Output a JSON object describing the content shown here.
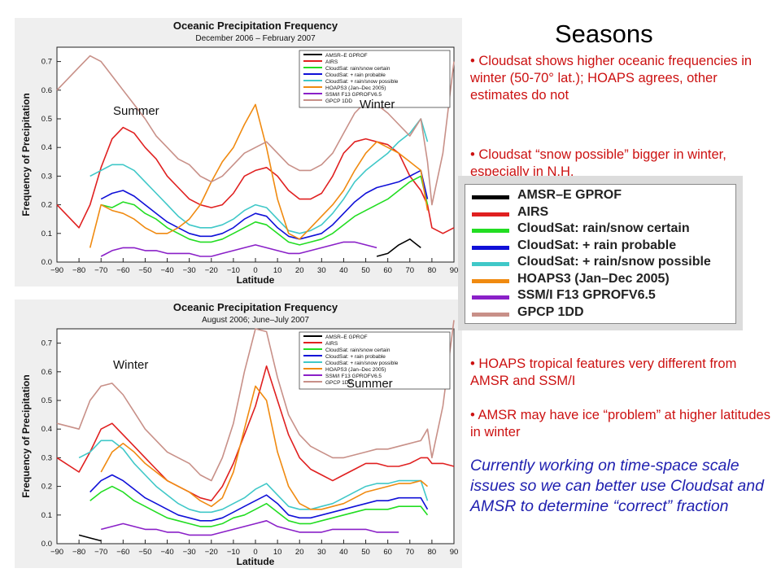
{
  "slide": {
    "title": "Seasons",
    "bullets": [
      "• Cloudsat shows higher oceanic frequencies in winter (50-70° lat.); HOAPS agrees, other estimates do not",
      "• Cloudsat “snow possible” bigger in winter, especially in N.H.",
      "• HOAPS tropical features very different from AMSR and SSM/I",
      "• AMSR may have ice “problem” at higher latitudes in winter"
    ],
    "closing_note": "Currently working on time-space scale issues so we can better use Cloudsat and AMSR to determine “correct” fraction"
  },
  "legend_enlarged": [
    {
      "label": "AMSR–E GPROF",
      "color": "#000000"
    },
    {
      "label": "AIRS",
      "color": "#e02020"
    },
    {
      "label": "CloudSat: rain/snow certain",
      "color": "#22dd22"
    },
    {
      "label": "CloudSat: + rain probable",
      "color": "#1010d8"
    },
    {
      "label": "CloudSat: + rain/snow possible",
      "color": "#40c8c8"
    },
    {
      "label": "HOAPS3 (Jan–Dec 2005)",
      "color": "#f08a10"
    },
    {
      "label": "SSM/I F13 GPROFV6.5",
      "color": "#8a20c8"
    },
    {
      "label": "GPCP 1DD",
      "color": "#c89088"
    }
  ],
  "chart_data": [
    {
      "type": "line",
      "title": "Oceanic Precipitation Frequency",
      "subtitle": "December 2006 – February 2007",
      "xlabel": "Latitude",
      "ylabel": "Frequency of Precipitation",
      "xlim": [
        -90,
        90
      ],
      "ylim": [
        0,
        0.75
      ],
      "xticks": [
        "−90",
        "−80",
        "−70",
        "−60",
        "−50",
        "−40",
        "−30",
        "−20",
        "−10",
        "0",
        "10",
        "20",
        "30",
        "40",
        "50",
        "60",
        "70",
        "80",
        "90"
      ],
      "yticks": [
        "0.0",
        "0.1",
        "0.2",
        "0.3",
        "0.4",
        "0.5",
        "0.6",
        "0.7"
      ],
      "annotations": [
        {
          "text": "Summer"
        },
        {
          "text": "Winter"
        }
      ],
      "legend_position": "top-right",
      "x": [
        -90,
        -80,
        -75,
        -70,
        -65,
        -60,
        -55,
        -50,
        -45,
        -40,
        -35,
        -30,
        -25,
        -20,
        -15,
        -10,
        -5,
        0,
        5,
        10,
        15,
        20,
        25,
        30,
        35,
        40,
        45,
        50,
        55,
        60,
        65,
        70,
        75,
        78,
        80,
        85,
        90
      ],
      "series": [
        {
          "name": "AMSR–E GPROF",
          "color": "#000000",
          "values": [
            null,
            null,
            null,
            null,
            null,
            null,
            null,
            null,
            null,
            null,
            null,
            null,
            null,
            null,
            null,
            null,
            null,
            null,
            null,
            null,
            null,
            null,
            null,
            null,
            null,
            null,
            null,
            null,
            0.02,
            0.03,
            0.06,
            0.08,
            0.05,
            null,
            null,
            null,
            null
          ]
        },
        {
          "name": "AIRS",
          "color": "#e02020",
          "values": [
            0.2,
            0.12,
            0.2,
            0.33,
            0.43,
            0.47,
            0.45,
            0.4,
            0.36,
            0.3,
            0.26,
            0.22,
            0.2,
            0.19,
            0.2,
            0.24,
            0.3,
            0.32,
            0.33,
            0.3,
            0.25,
            0.22,
            0.22,
            0.24,
            0.3,
            0.38,
            0.42,
            0.43,
            0.42,
            0.41,
            0.38,
            0.3,
            0.25,
            0.2,
            0.12,
            0.1,
            0.12
          ]
        },
        {
          "name": "CloudSat: rain/snow certain",
          "color": "#22dd22",
          "values": [
            null,
            null,
            null,
            0.2,
            0.19,
            0.21,
            0.2,
            0.17,
            0.15,
            0.12,
            0.1,
            0.08,
            0.07,
            0.07,
            0.08,
            0.1,
            0.12,
            0.14,
            0.13,
            0.1,
            0.07,
            0.06,
            0.07,
            0.08,
            0.1,
            0.13,
            0.16,
            0.18,
            0.2,
            0.22,
            0.25,
            0.28,
            0.3,
            0.2,
            null,
            null,
            null
          ]
        },
        {
          "name": "CloudSat: + rain probable",
          "color": "#1010d8",
          "values": [
            null,
            null,
            null,
            0.22,
            0.24,
            0.25,
            0.23,
            0.2,
            0.17,
            0.14,
            0.12,
            0.1,
            0.09,
            0.09,
            0.1,
            0.12,
            0.15,
            0.17,
            0.16,
            0.12,
            0.09,
            0.08,
            0.09,
            0.1,
            0.13,
            0.17,
            0.21,
            0.24,
            0.26,
            0.27,
            0.28,
            0.3,
            0.32,
            0.22,
            null,
            null,
            null
          ]
        },
        {
          "name": "CloudSat: + rain/snow possible",
          "color": "#40c8c8",
          "values": [
            null,
            null,
            0.3,
            0.32,
            0.34,
            0.34,
            0.32,
            0.28,
            0.24,
            0.2,
            0.16,
            0.13,
            0.12,
            0.12,
            0.13,
            0.15,
            0.18,
            0.2,
            0.19,
            0.15,
            0.11,
            0.1,
            0.11,
            0.13,
            0.17,
            0.22,
            0.28,
            0.32,
            0.35,
            0.38,
            0.42,
            0.45,
            0.5,
            0.42,
            null,
            null,
            null
          ]
        },
        {
          "name": "HOAPS3 (Jan–Dec 2005)",
          "color": "#f08a10",
          "values": [
            null,
            null,
            0.05,
            0.2,
            0.18,
            0.17,
            0.15,
            0.12,
            0.1,
            0.1,
            0.12,
            0.15,
            0.2,
            0.28,
            0.35,
            0.4,
            0.48,
            0.55,
            0.4,
            0.22,
            0.1,
            0.08,
            0.12,
            0.16,
            0.2,
            0.25,
            0.32,
            0.38,
            0.42,
            0.4,
            0.38,
            0.35,
            0.32,
            0.18,
            null,
            null,
            null
          ]
        },
        {
          "name": "SSM/I F13 GPROFV6.5",
          "color": "#8a20c8",
          "values": [
            null,
            null,
            null,
            0.02,
            0.04,
            0.05,
            0.05,
            0.04,
            0.04,
            0.03,
            0.03,
            0.03,
            0.02,
            0.02,
            0.03,
            0.04,
            0.05,
            0.06,
            0.05,
            0.04,
            0.03,
            0.03,
            0.04,
            0.05,
            0.06,
            0.07,
            0.07,
            0.06,
            0.05,
            null,
            null,
            null,
            null,
            null,
            null,
            null,
            null
          ]
        },
        {
          "name": "GPCP 1DD",
          "color": "#c89088",
          "values": [
            0.6,
            0.68,
            0.72,
            0.7,
            0.65,
            0.6,
            0.55,
            0.5,
            0.44,
            0.4,
            0.36,
            0.34,
            0.3,
            0.28,
            0.3,
            0.34,
            0.38,
            0.4,
            0.42,
            0.38,
            0.34,
            0.32,
            0.32,
            0.34,
            0.38,
            0.45,
            0.52,
            0.56,
            0.55,
            0.52,
            0.48,
            0.44,
            0.5,
            0.35,
            0.2,
            0.38,
            0.7
          ]
        }
      ]
    },
    {
      "type": "line",
      "title": "Oceanic Precipitation Frequency",
      "subtitle": "August 2006; June–July 2007",
      "xlabel": "Latitude",
      "ylabel": "Frequency of Precipitation",
      "xlim": [
        -90,
        90
      ],
      "ylim": [
        0,
        0.75
      ],
      "xticks": [
        "−90",
        "−80",
        "−70",
        "−60",
        "−50",
        "−40",
        "−30",
        "−20",
        "−10",
        "0",
        "10",
        "20",
        "30",
        "40",
        "50",
        "60",
        "70",
        "80",
        "90"
      ],
      "yticks": [
        "0.0",
        "0.1",
        "0.2",
        "0.3",
        "0.4",
        "0.5",
        "0.6",
        "0.7"
      ],
      "annotations": [
        {
          "text": "Winter"
        },
        {
          "text": "Summer"
        }
      ],
      "legend_position": "top-right",
      "x": [
        -90,
        -80,
        -75,
        -70,
        -65,
        -60,
        -55,
        -50,
        -45,
        -40,
        -35,
        -30,
        -25,
        -20,
        -15,
        -10,
        -5,
        0,
        5,
        10,
        15,
        20,
        25,
        30,
        35,
        40,
        45,
        50,
        55,
        60,
        65,
        70,
        75,
        78,
        80,
        85,
        90
      ],
      "series": [
        {
          "name": "AMSR–E GPROF",
          "color": "#000000",
          "values": [
            null,
            0.03,
            0.02,
            0.01,
            null,
            null,
            null,
            null,
            null,
            null,
            null,
            null,
            null,
            null,
            null,
            null,
            null,
            null,
            null,
            null,
            null,
            null,
            null,
            null,
            null,
            null,
            null,
            null,
            null,
            null,
            null,
            null,
            null,
            null,
            null,
            null,
            null
          ]
        },
        {
          "name": "AIRS",
          "color": "#e02020",
          "values": [
            0.3,
            0.25,
            0.32,
            0.4,
            0.42,
            0.38,
            0.34,
            0.3,
            0.26,
            0.22,
            0.2,
            0.18,
            0.16,
            0.15,
            0.2,
            0.28,
            0.38,
            0.48,
            0.62,
            0.5,
            0.38,
            0.3,
            0.26,
            0.24,
            0.22,
            0.24,
            0.26,
            0.28,
            0.28,
            0.27,
            0.27,
            0.28,
            0.3,
            0.3,
            0.28,
            0.28,
            0.27
          ]
        },
        {
          "name": "CloudSat: rain/snow certain",
          "color": "#22dd22",
          "values": [
            null,
            null,
            0.15,
            0.18,
            0.2,
            0.18,
            0.15,
            0.13,
            0.11,
            0.09,
            0.08,
            0.07,
            0.06,
            0.06,
            0.07,
            0.09,
            0.1,
            0.12,
            0.14,
            0.11,
            0.08,
            0.07,
            0.07,
            0.08,
            0.09,
            0.1,
            0.11,
            0.12,
            0.12,
            0.12,
            0.13,
            0.13,
            0.13,
            0.1,
            null,
            null,
            null
          ]
        },
        {
          "name": "CloudSat: + rain probable",
          "color": "#1010d8",
          "values": [
            null,
            null,
            0.18,
            0.22,
            0.24,
            0.22,
            0.19,
            0.16,
            0.14,
            0.12,
            0.1,
            0.09,
            0.08,
            0.08,
            0.09,
            0.11,
            0.13,
            0.15,
            0.17,
            0.14,
            0.1,
            0.09,
            0.09,
            0.1,
            0.11,
            0.12,
            0.13,
            0.14,
            0.15,
            0.15,
            0.16,
            0.16,
            0.16,
            0.12,
            null,
            null,
            null
          ]
        },
        {
          "name": "CloudSat: + rain/snow possible",
          "color": "#40c8c8",
          "values": [
            null,
            0.3,
            0.32,
            0.36,
            0.36,
            0.33,
            0.28,
            0.24,
            0.2,
            0.17,
            0.14,
            0.12,
            0.11,
            0.11,
            0.12,
            0.14,
            0.16,
            0.19,
            0.21,
            0.17,
            0.13,
            0.12,
            0.12,
            0.13,
            0.14,
            0.16,
            0.18,
            0.2,
            0.21,
            0.21,
            0.22,
            0.22,
            0.22,
            0.15,
            null,
            null,
            null
          ]
        },
        {
          "name": "HOAPS3 (Jan–Dec 2005)",
          "color": "#f08a10",
          "values": [
            null,
            null,
            null,
            0.25,
            0.32,
            0.35,
            0.32,
            0.28,
            0.25,
            0.22,
            0.2,
            0.18,
            0.15,
            0.13,
            0.16,
            0.25,
            0.4,
            0.55,
            0.5,
            0.32,
            0.2,
            0.14,
            0.12,
            0.12,
            0.13,
            0.14,
            0.16,
            0.18,
            0.19,
            0.2,
            0.21,
            0.21,
            0.22,
            0.2,
            null,
            null,
            null
          ]
        },
        {
          "name": "SSM/I F13 GPROFV6.5",
          "color": "#8a20c8",
          "values": [
            null,
            null,
            null,
            0.05,
            0.06,
            0.07,
            0.06,
            0.05,
            0.05,
            0.04,
            0.04,
            0.03,
            0.03,
            0.03,
            0.04,
            0.05,
            0.06,
            0.07,
            0.08,
            0.06,
            0.05,
            0.04,
            0.04,
            0.04,
            0.05,
            0.05,
            0.05,
            0.05,
            0.04,
            0.04,
            0.04,
            null,
            null,
            null,
            null,
            null,
            null
          ]
        },
        {
          "name": "GPCP 1DD",
          "color": "#c89088",
          "values": [
            0.42,
            0.4,
            0.5,
            0.55,
            0.56,
            0.52,
            0.46,
            0.4,
            0.36,
            0.32,
            0.3,
            0.28,
            0.24,
            0.22,
            0.3,
            0.42,
            0.6,
            0.75,
            0.74,
            0.58,
            0.45,
            0.38,
            0.34,
            0.32,
            0.3,
            0.3,
            0.31,
            0.32,
            0.33,
            0.33,
            0.34,
            0.35,
            0.36,
            0.4,
            0.3,
            0.48,
            0.78
          ]
        }
      ]
    }
  ]
}
